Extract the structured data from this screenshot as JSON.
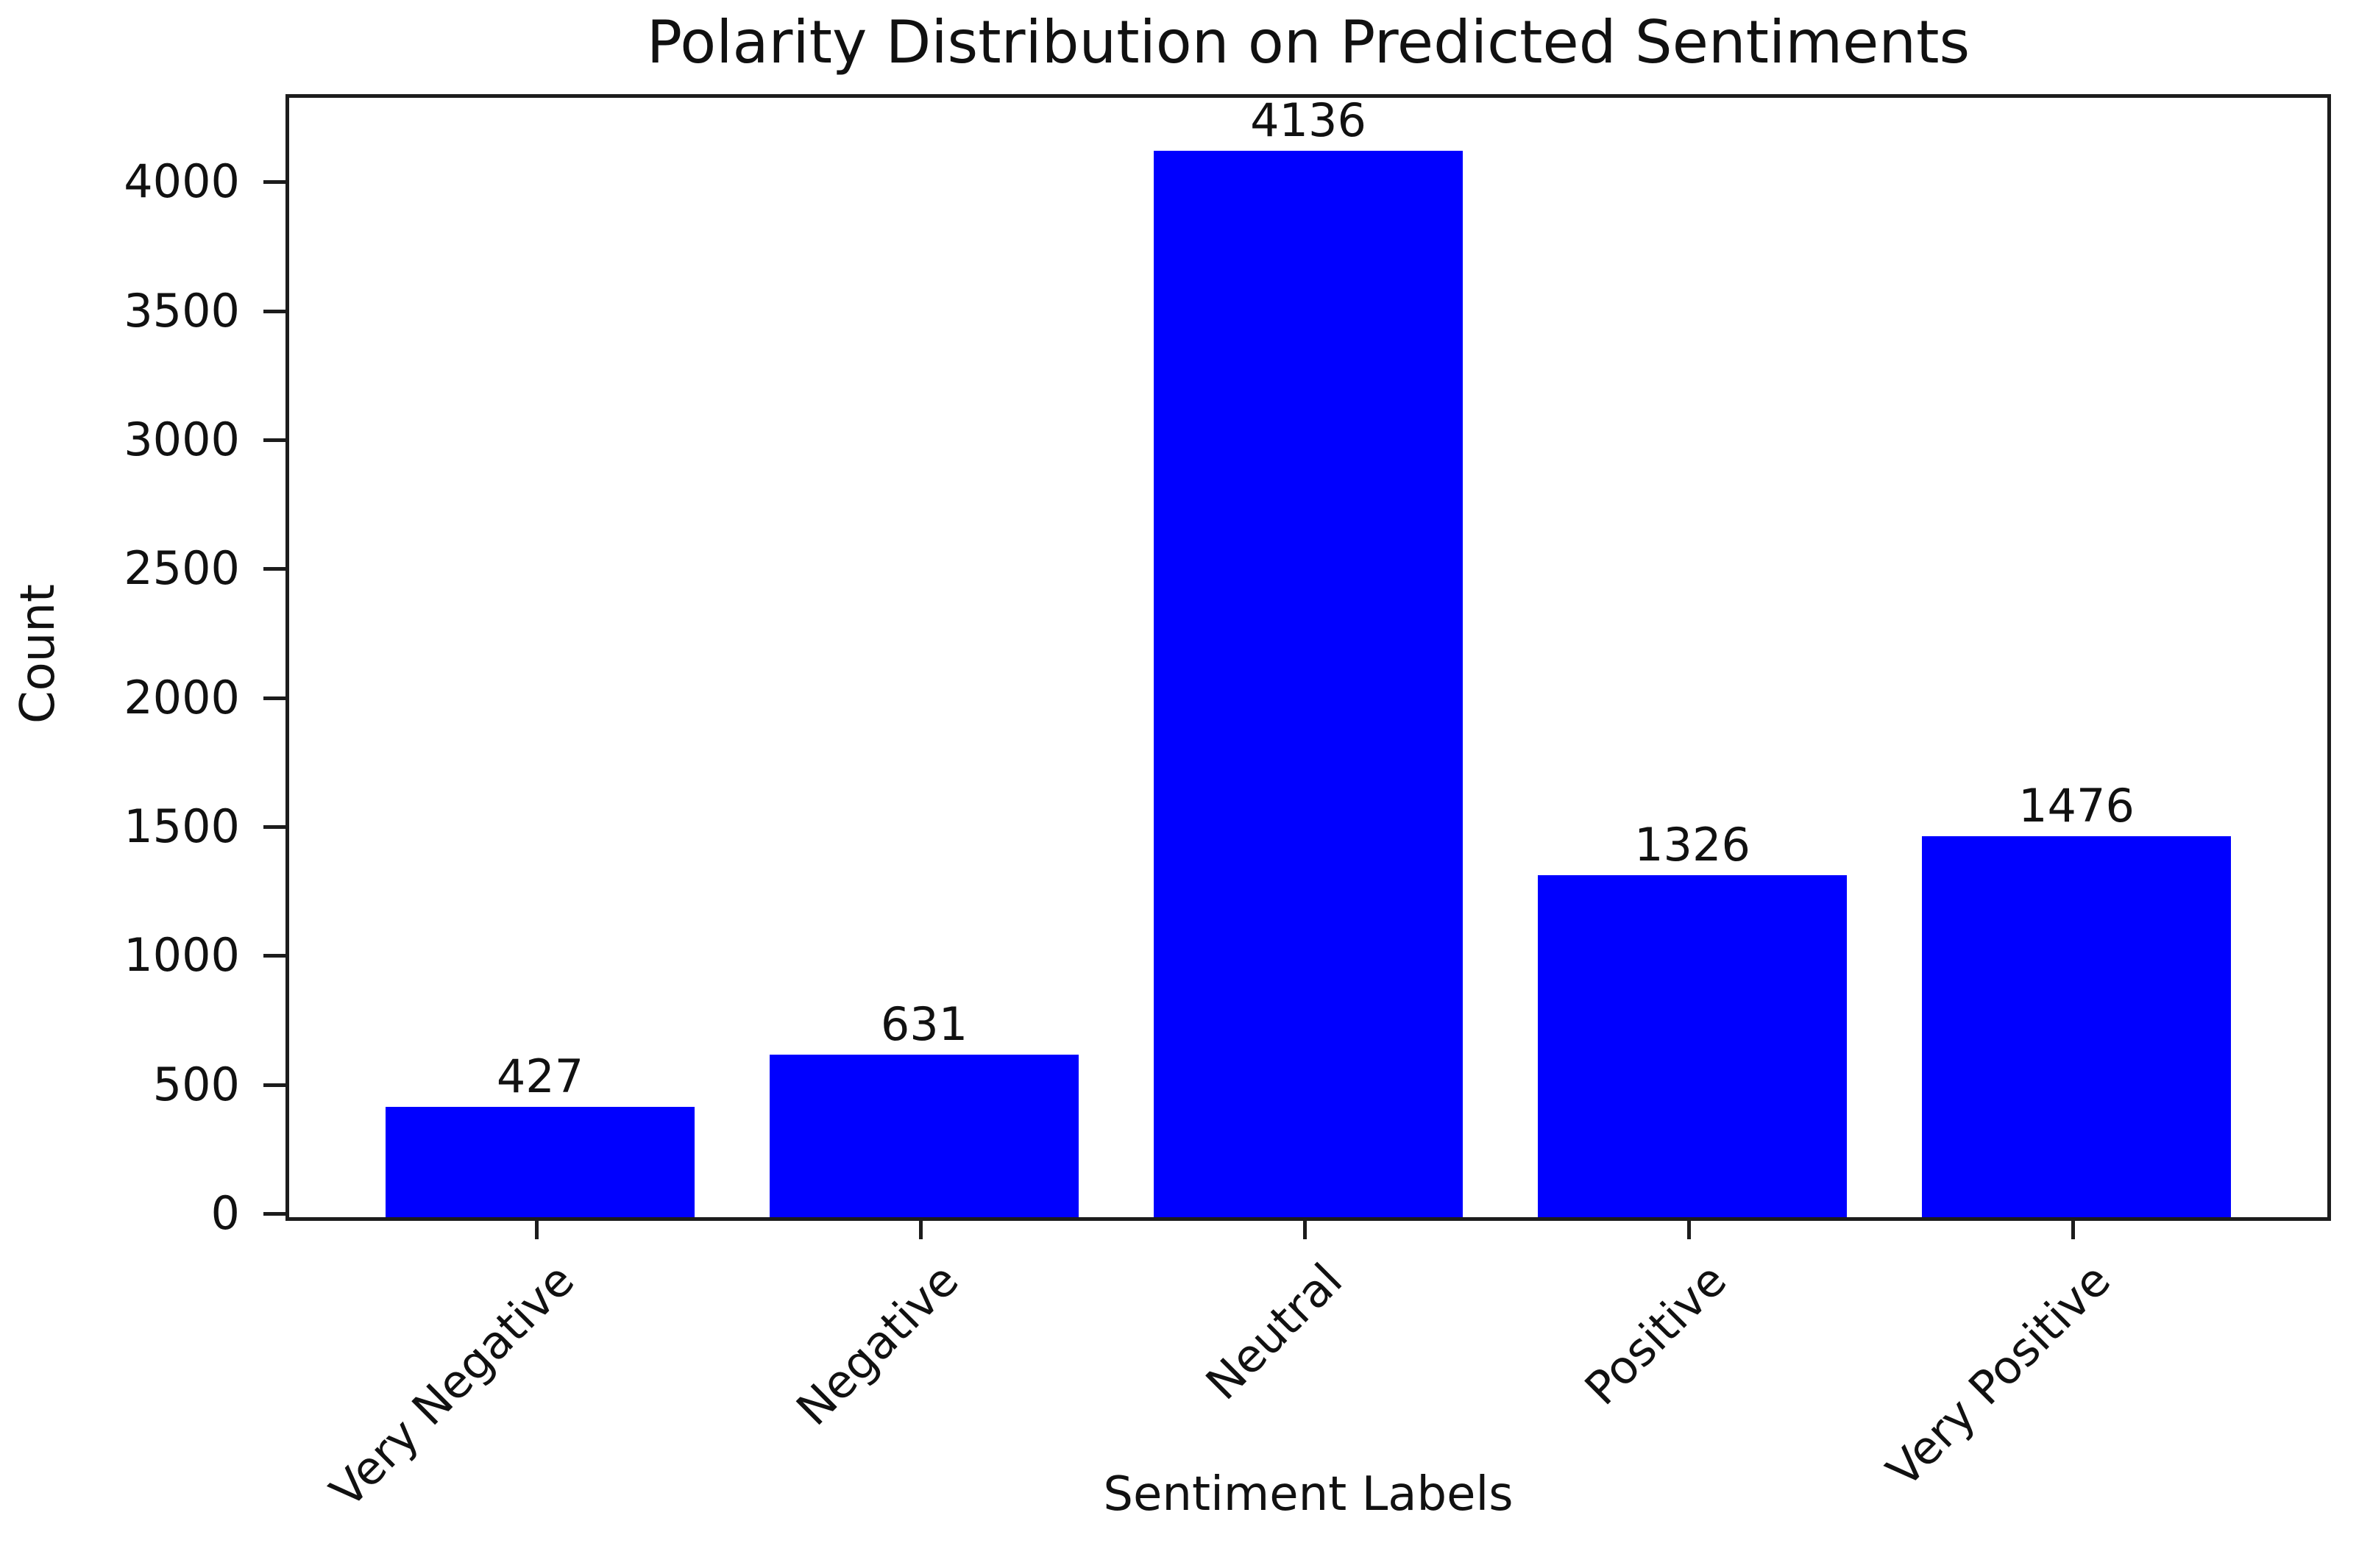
{
  "chart_data": {
    "type": "bar",
    "title": "Polarity Distribution on Predicted Sentiments",
    "xlabel": "Sentiment Labels",
    "ylabel": "Count",
    "categories": [
      "Very Negative",
      "Negative",
      "Neutral",
      "Positive",
      "Very Positive"
    ],
    "values": [
      427,
      631,
      4136,
      1326,
      1476
    ],
    "bar_labels": [
      "427",
      "631",
      "4136",
      "1326",
      "1476"
    ],
    "yticks": [
      0,
      500,
      1000,
      1500,
      2000,
      2500,
      3000,
      3500,
      4000
    ],
    "ylim": [
      0,
      4340
    ],
    "xtick_rotation_deg": 45,
    "grid": false,
    "legend_position": "none",
    "colors": {
      "bar_fill": "#0000ff",
      "spine": "#1c1c1c",
      "text": "#111111",
      "background": "#ffffff"
    }
  }
}
